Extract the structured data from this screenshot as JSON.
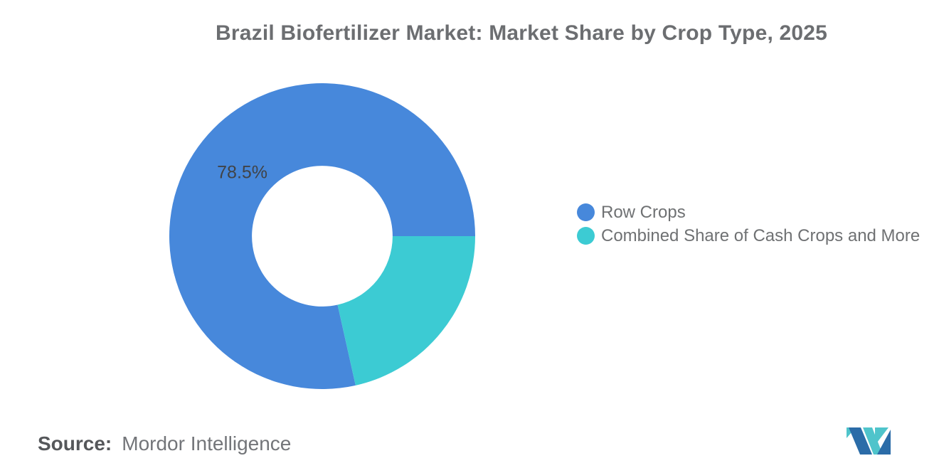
{
  "chart_data": {
    "type": "pie",
    "subtype": "donut",
    "title": "Brazil Biofertilizer Market: Market Share by Crop Type, 2025",
    "slices": [
      {
        "label": "Row Crops",
        "value": 78.5,
        "color": "#4788DB",
        "data_label": "78.5%"
      },
      {
        "label": "Combined Share of Cash Crops and More",
        "value": 21.5,
        "color": "#3CCBD3",
        "data_label": ""
      }
    ],
    "start_angle_deg": 167.4,
    "direction": "clockwise",
    "inner_radius_ratio": 0.46,
    "data_label_radius_ratio": 0.67,
    "data_label_color": "#404347",
    "legend_position": "right",
    "background_color": "#ffffff"
  },
  "source": {
    "label": "Source:",
    "value": "Mordor Intelligence"
  },
  "logo": {
    "name": "mordor-intelligence-logomark",
    "teal": "#4FC4CB",
    "blue": "#2B6CA8"
  }
}
